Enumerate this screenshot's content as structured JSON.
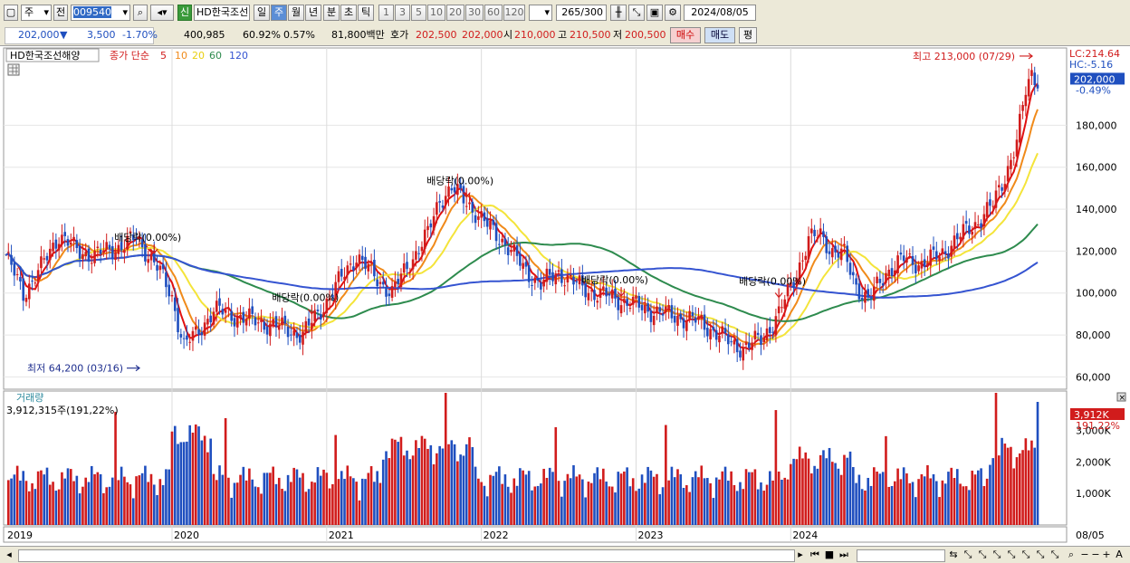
{
  "toolbar": {
    "period_select": "주",
    "prev_label": "전",
    "code": "009540",
    "badge": "신",
    "name": "HD한국조선",
    "intervals": [
      "일",
      "주",
      "월",
      "년",
      "분",
      "초",
      "틱"
    ],
    "active_interval": "주",
    "tick_numbers": [
      "1",
      "3",
      "5",
      "10",
      "20",
      "30",
      "60",
      "120"
    ],
    "count": "265",
    "count_max": "/300",
    "date": "2024/08/05"
  },
  "quote": {
    "price": "202,000",
    "change_arrow": "▼",
    "change": "3,500",
    "change_pct": "-1.70%",
    "volume": "400,985",
    "ratio1": "60.92%",
    "ratio2": "0.57%",
    "amount": "81,800백만",
    "bid_label": "호가",
    "bid": "202,500",
    "ask": "202,000",
    "open_label": "시",
    "open": "210,000",
    "high_label": "고",
    "high": "210,500",
    "low_label": "저",
    "low": "200,500",
    "buy_label": "매수",
    "sell_label": "매도",
    "avg_label": "평"
  },
  "colors": {
    "up": "#d11c1c",
    "down": "#1f4fbf",
    "ma5": "#e01010",
    "ma10": "#f08a1a",
    "ma20": "#f4e43a",
    "ma60": "#2e8b4e",
    "ma120": "#3554d1"
  },
  "legend": {
    "symbol": "HD한국조선해양",
    "title": "종가 단순",
    "items": [
      "5",
      "10",
      "20",
      "60",
      "120"
    ]
  },
  "side_labels": {
    "lc": "LC:214.64",
    "hc": "HC:-5.16",
    "last_price": "202,000",
    "last_pct": "-0.49%",
    "vol_value": "3,912K",
    "vol_pct": "191.22%"
  },
  "volume_panel": {
    "title": "거래량",
    "value": "3,912,315주(191,22%)"
  },
  "chart_data": [
    {
      "type": "candlestick",
      "interval": "weekly",
      "x_range": [
        "2019-01",
        "2024-08-05"
      ],
      "y_ticks": [
        60000,
        80000,
        100000,
        120000,
        140000,
        160000,
        180000
      ],
      "ylim": [
        55000,
        216000
      ],
      "x_labels": [
        "2019",
        "2020",
        "2021",
        "2022",
        "2023",
        "2024",
        "08/05"
      ],
      "series": [
        {
          "name": "5",
          "role": "ma5"
        },
        {
          "name": "10",
          "role": "ma10"
        },
        {
          "name": "20",
          "role": "ma20"
        },
        {
          "name": "60",
          "role": "ma60"
        },
        {
          "name": "120",
          "role": "ma120"
        }
      ],
      "annotations": [
        {
          "text": "최고 213,000 (07/29)",
          "date": "2024-07-29",
          "price": 213000
        },
        {
          "text": "최저 64,200 (03/16)",
          "date": "2020-03-16",
          "price": 64200
        },
        {
          "text": "배당락(0.00%)",
          "date": "2019-12-23"
        },
        {
          "text": "배당락(0.00%)",
          "date": "2020-12-28"
        },
        {
          "text": "배당락(0.00%)",
          "date": "2021-12-27"
        },
        {
          "text": "배당락(0.00%)",
          "date": "2022-12-26"
        },
        {
          "text": "배당락(0.00%)",
          "date": "2023-12-26"
        }
      ],
      "last": {
        "price": 202000,
        "pct": "-0.49%"
      }
    },
    {
      "type": "bar",
      "name": "거래량",
      "y_ticks": [
        "1,000K",
        "2,000K",
        "3,000K"
      ],
      "last_volume": 3912315
    }
  ]
}
